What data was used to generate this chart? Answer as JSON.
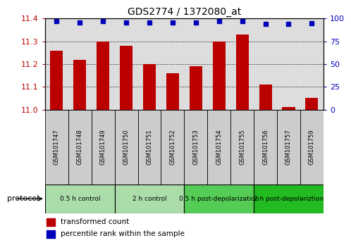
{
  "title": "GDS2774 / 1372080_at",
  "samples": [
    "GSM101747",
    "GSM101748",
    "GSM101749",
    "GSM101750",
    "GSM101751",
    "GSM101752",
    "GSM101753",
    "GSM101754",
    "GSM101755",
    "GSM101756",
    "GSM101757",
    "GSM101759"
  ],
  "bar_values": [
    11.26,
    11.22,
    11.3,
    11.28,
    11.2,
    11.16,
    11.19,
    11.3,
    11.33,
    11.11,
    11.01,
    11.05
  ],
  "percentile_values": [
    97,
    96,
    97,
    96,
    96,
    96,
    96,
    97,
    97,
    94,
    94,
    95
  ],
  "ylim_left": [
    11.0,
    11.4
  ],
  "ylim_right": [
    0,
    100
  ],
  "yticks_left": [
    11.0,
    11.1,
    11.2,
    11.3,
    11.4
  ],
  "yticks_right": [
    0,
    25,
    50,
    75,
    100
  ],
  "bar_color": "#bb0000",
  "dot_color": "#0000bb",
  "grid_color": "#000000",
  "bg_color": "#ffffff",
  "col_bg_color": "#dddddd",
  "protocol_groups": [
    {
      "label": "0.5 h control",
      "start": 0,
      "end": 3,
      "color": "#aaddaa"
    },
    {
      "label": "2 h control",
      "start": 3,
      "end": 6,
      "color": "#aaddaa"
    },
    {
      "label": "0.5 h post-depolarization",
      "start": 6,
      "end": 9,
      "color": "#55cc55"
    },
    {
      "label": "2 h post-depolariztion",
      "start": 9,
      "end": 12,
      "color": "#22bb22"
    }
  ],
  "legend_bar_label": "transformed count",
  "legend_dot_label": "percentile rank within the sample",
  "protocol_label": "protocol"
}
